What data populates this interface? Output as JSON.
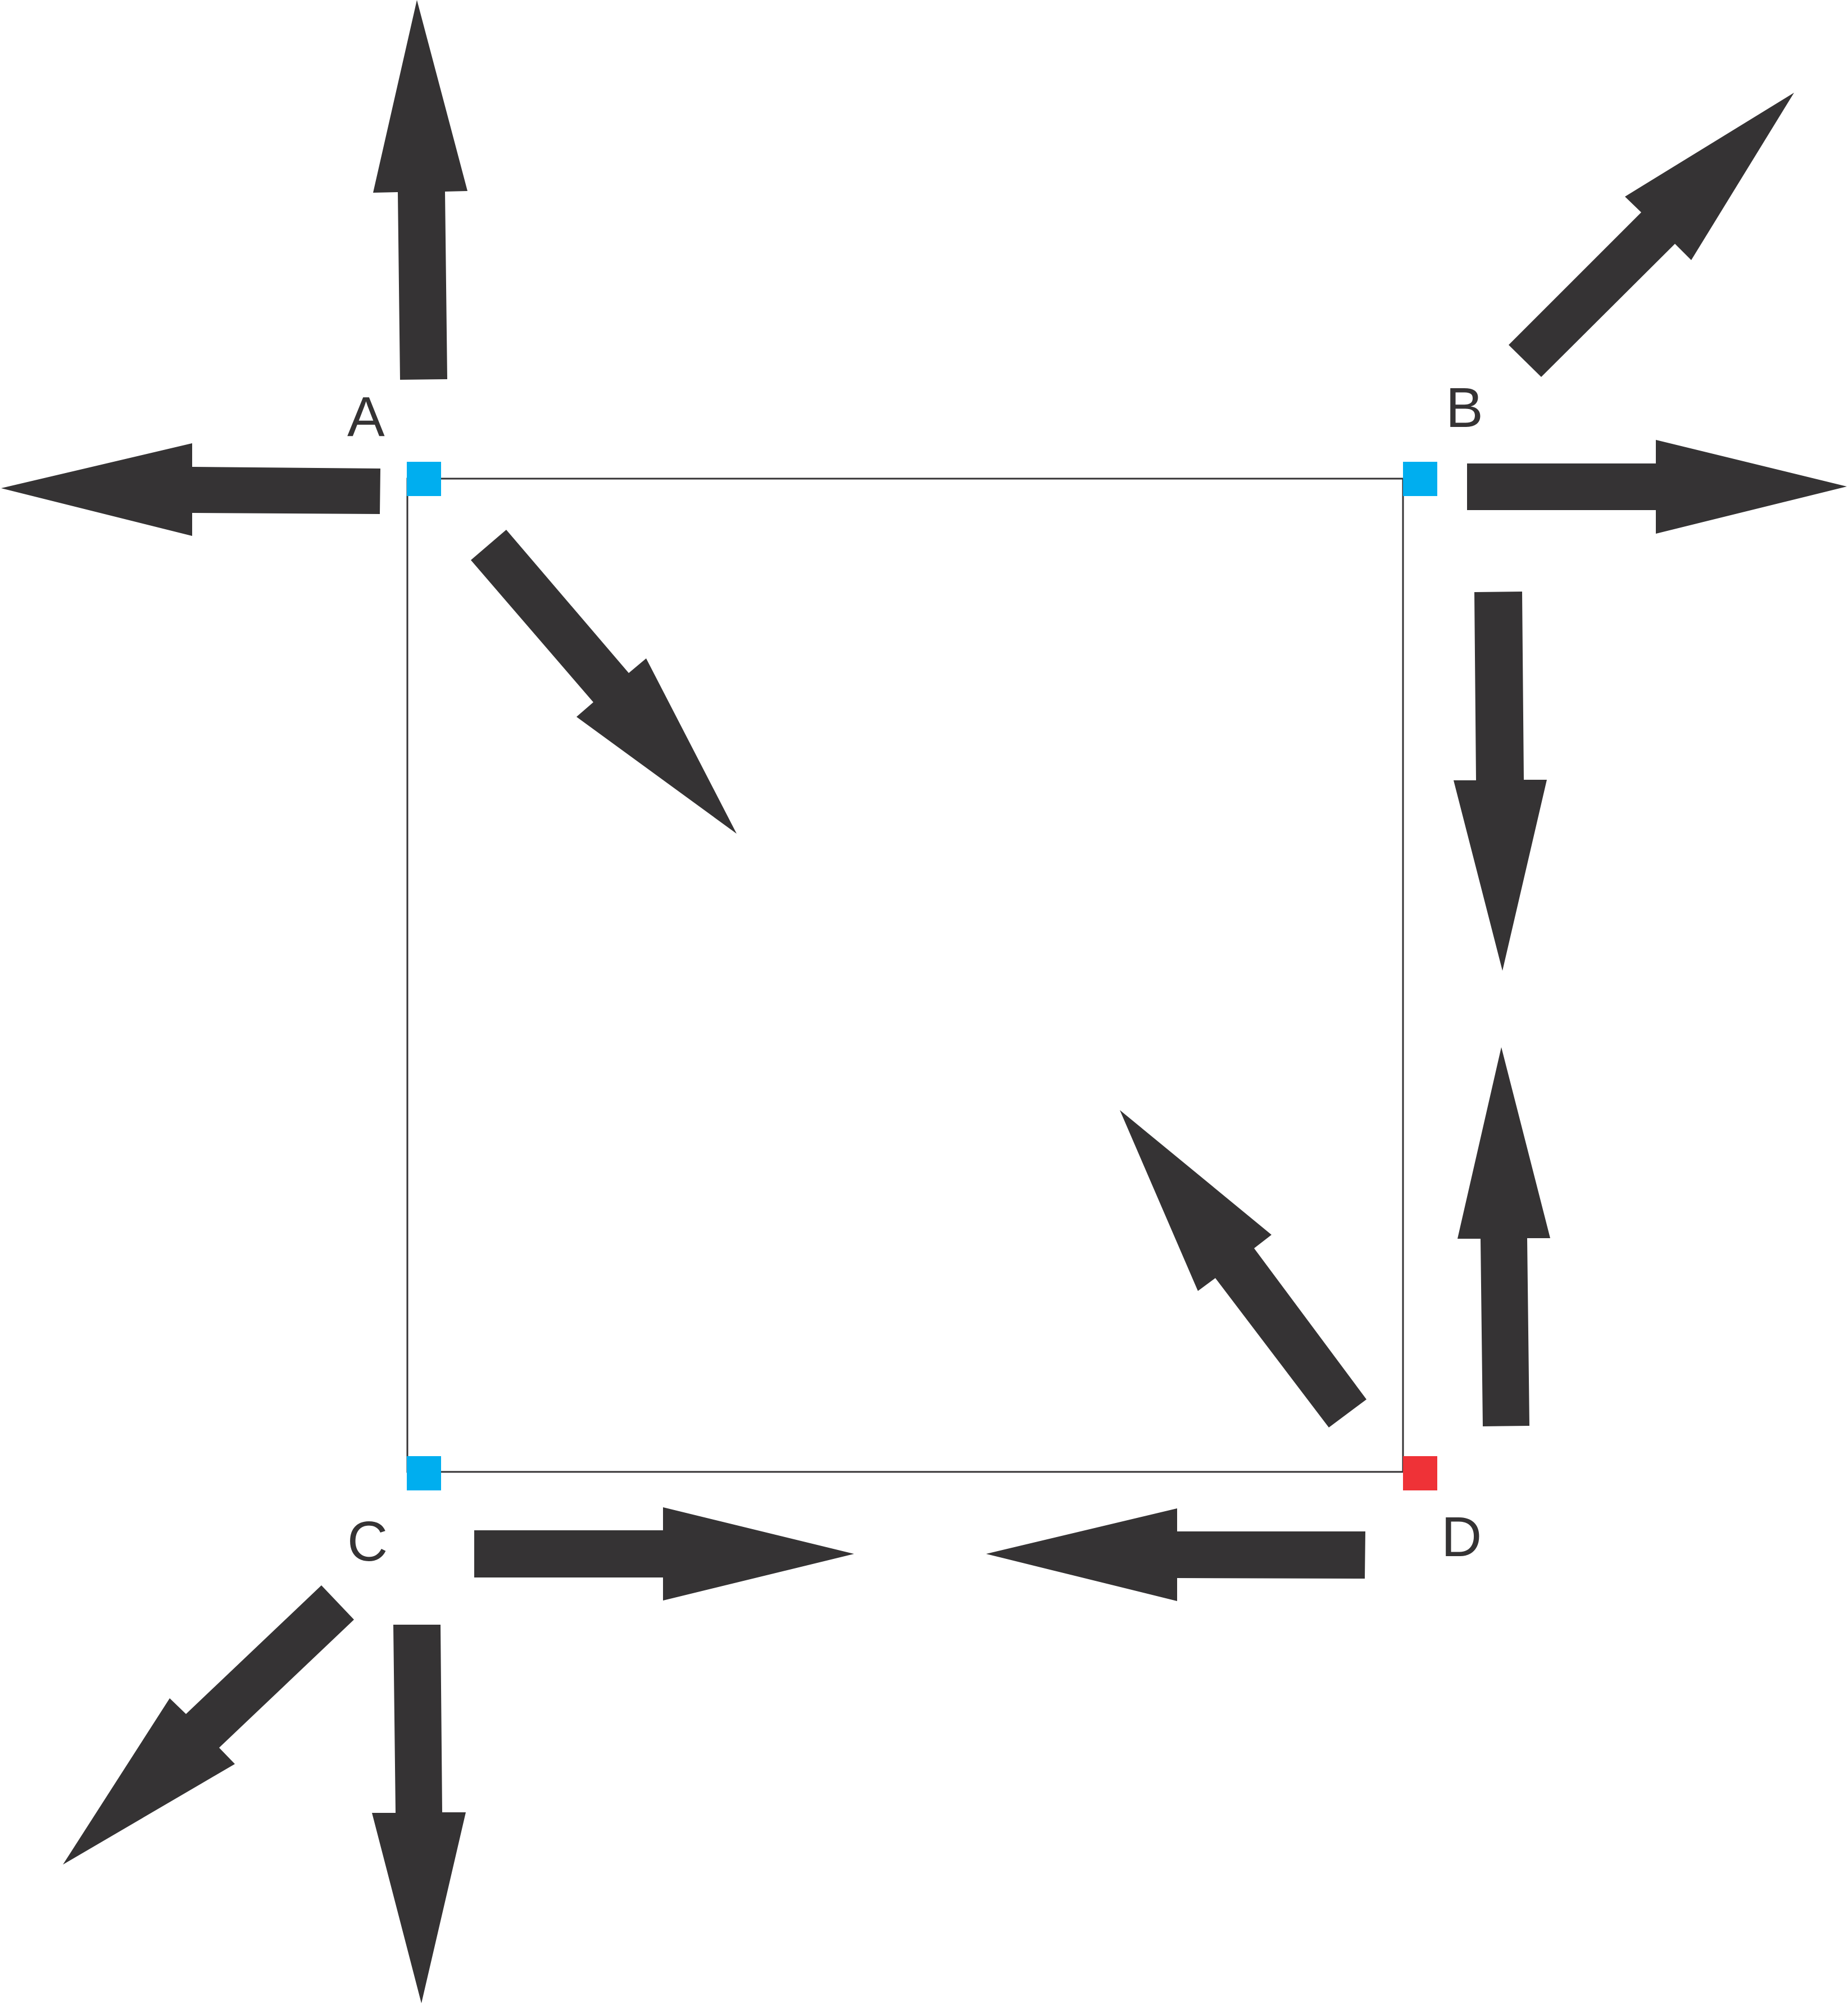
{
  "colors": {
    "background": "#ffffff",
    "arrow": "#353334",
    "square_outline": "#353334",
    "marker_default": "#00aeef",
    "marker_highlight": "#ef3237"
  },
  "corners": [
    {
      "id": "A",
      "label": "A",
      "marker_color": "#00aeef"
    },
    {
      "id": "B",
      "label": "B",
      "marker_color": "#00aeef"
    },
    {
      "id": "C",
      "label": "C",
      "marker_color": "#00aeef"
    },
    {
      "id": "D",
      "label": "D",
      "marker_color": "#ef3237"
    }
  ],
  "arrows": [
    {
      "corner": "A",
      "direction": "up"
    },
    {
      "corner": "A",
      "direction": "left"
    },
    {
      "corner": "A",
      "direction": "inward-diagonal"
    },
    {
      "corner": "B",
      "direction": "up-right"
    },
    {
      "corner": "B",
      "direction": "right"
    },
    {
      "corner": "B",
      "direction": "down-along-edge"
    },
    {
      "corner": "C",
      "direction": "down-left"
    },
    {
      "corner": "C",
      "direction": "down"
    },
    {
      "corner": "C",
      "direction": "right-along-edge"
    },
    {
      "corner": "D",
      "direction": "up-along-edge"
    },
    {
      "corner": "D",
      "direction": "left-along-edge"
    },
    {
      "corner": "D",
      "direction": "inward-diagonal"
    }
  ]
}
